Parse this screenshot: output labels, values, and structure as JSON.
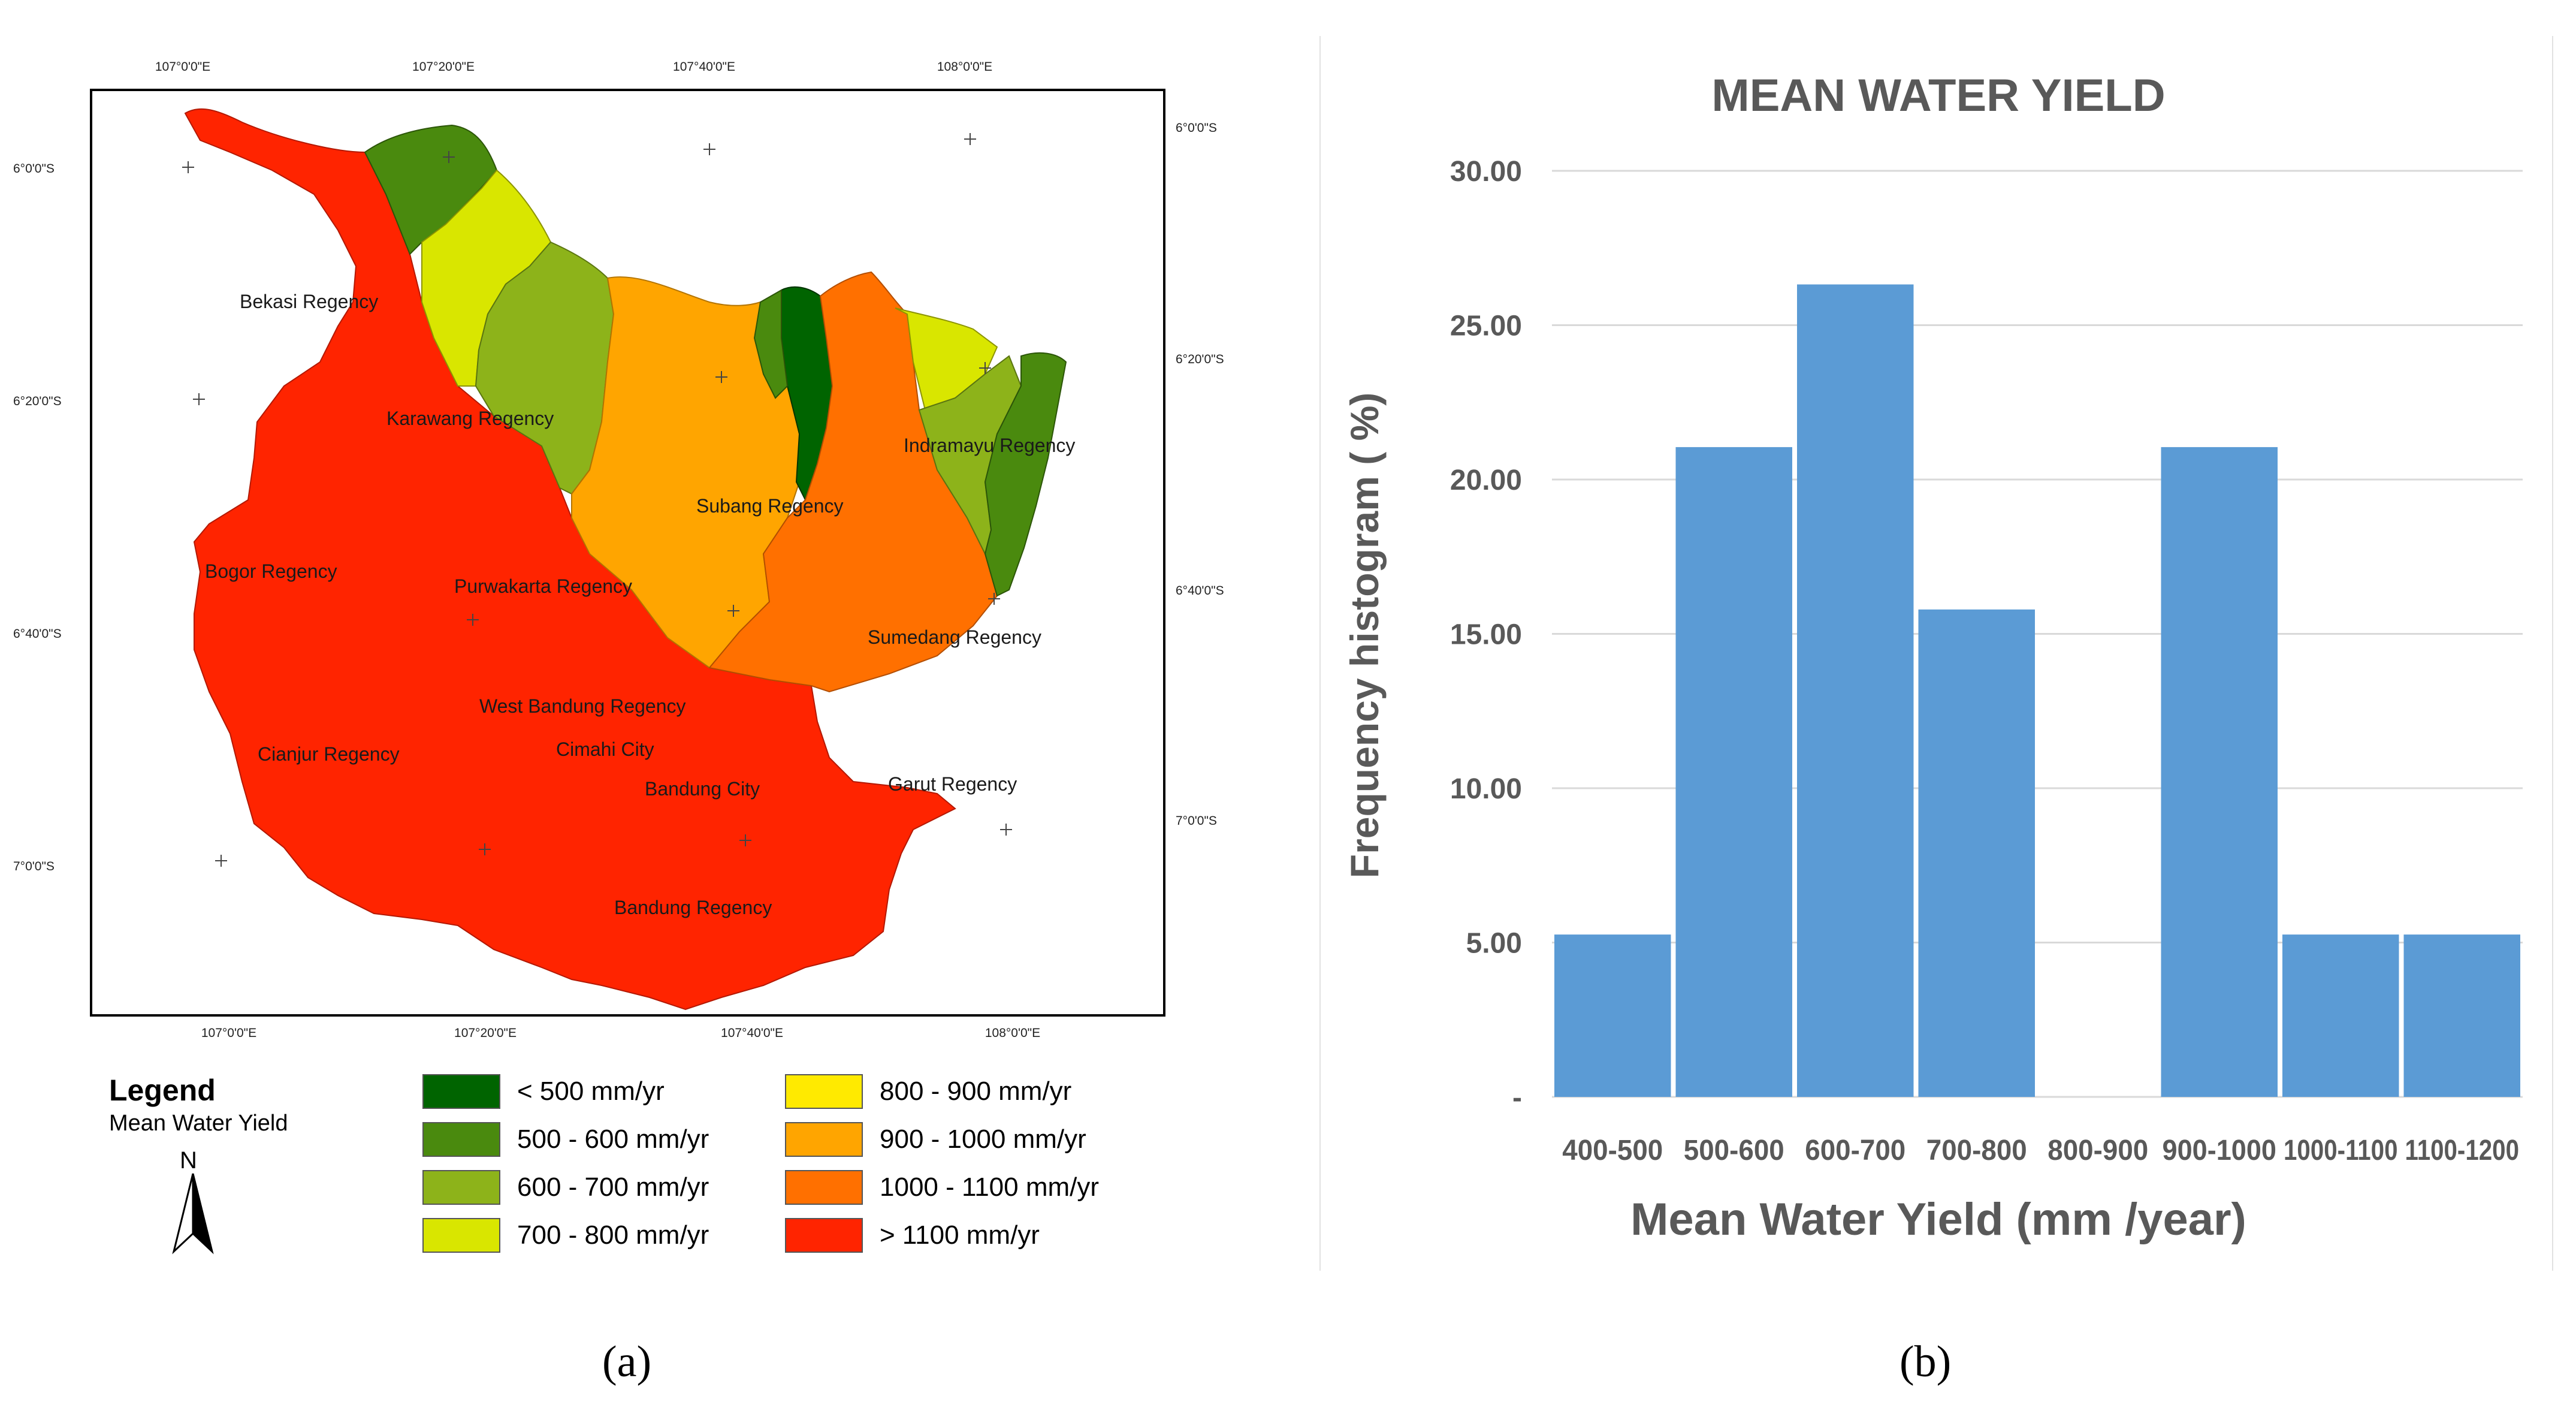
{
  "panel_a": {
    "caption": "(a)",
    "coords_top": [
      "107°0'0\"E",
      "107°20'0\"E",
      "107°40'0\"E",
      "108°0'0\"E"
    ],
    "coords_bottom": [
      "107°0'0\"E",
      "107°20'0\"E",
      "107°40'0\"E",
      "108°0'0\"E"
    ],
    "coords_left": [
      "6°0'0\"S",
      "6°20'0\"S",
      "6°40'0\"S",
      "7°0'0\"S"
    ],
    "coords_right": [
      "6°0'0\"S",
      "6°20'0\"S",
      "6°40'0\"S",
      "7°0'0\"S"
    ],
    "regions": [
      "Bekasi Regency",
      "Karawang Regency",
      "Indramayu Regency",
      "Subang Regency",
      "Bogor Regency",
      "Purwakarta Regency",
      "Sumedang Regency",
      "West Bandung Regency",
      "Cianjur Regency",
      "Cimahi City",
      "Bandung City",
      "Garut Regency",
      "Bandung Regency"
    ],
    "legend": {
      "title": "Legend",
      "subtitle": "Mean Water Yield",
      "north": "N",
      "items": [
        {
          "label": "< 500 mm/yr",
          "color": "#006400"
        },
        {
          "label": "500 - 600 mm/yr",
          "color": "#4A8A0E"
        },
        {
          "label": "600 - 700 mm/yr",
          "color": "#8DB31A"
        },
        {
          "label": "700 - 800 mm/yr",
          "color": "#D9E600"
        },
        {
          "label": "800 - 900 mm/yr",
          "color": "#FFEA00"
        },
        {
          "label": "900 - 1000 mm/yr",
          "color": "#FFA500"
        },
        {
          "label": "1000 - 1100 mm/yr",
          "color": "#FF7000"
        },
        {
          "label": "> 1100 mm/yr",
          "color": "#FF2400"
        }
      ]
    }
  },
  "panel_b": {
    "caption": "(b)",
    "chart_data": {
      "type": "bar",
      "title": "MEAN WATER YIELD",
      "xlabel": "Mean Water Yield (mm /year)",
      "ylabel": "Frequency histogram ( %)",
      "categories": [
        "400-500",
        "500-600",
        "600-700",
        "700-800",
        "800-900",
        "900-1000",
        "1000-1100",
        "1100-1200"
      ],
      "values": [
        5.26,
        21.05,
        26.32,
        15.79,
        0,
        21.05,
        5.26,
        5.26
      ],
      "ylim": [
        0,
        30
      ],
      "yticks": [
        "-",
        "5.00",
        "10.00",
        "15.00",
        "20.00",
        "25.00",
        "30.00"
      ],
      "grid": true,
      "bar_color": "#5B9BD5"
    }
  }
}
